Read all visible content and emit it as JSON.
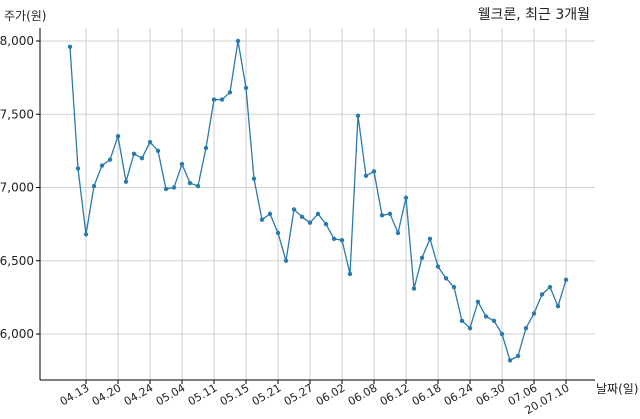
{
  "chart_data": {
    "type": "line",
    "title": "웰크론, 최근 3개월",
    "ylabel": "주가(원)",
    "xlabel": "날짜(일)",
    "ylim": [
      5740,
      8110
    ],
    "yticks": [
      6000,
      6500,
      7000,
      7500,
      8000
    ],
    "ytick_labels": [
      "6,000",
      "6,500",
      "7,000",
      "7,500",
      "8,000"
    ],
    "xticks": [
      {
        "i": 2,
        "label": "04.13"
      },
      {
        "i": 6,
        "label": "04.20"
      },
      {
        "i": 10,
        "label": "04.24"
      },
      {
        "i": 14,
        "label": "05.04"
      },
      {
        "i": 18,
        "label": "05.11"
      },
      {
        "i": 22,
        "label": "05.15"
      },
      {
        "i": 26,
        "label": "05.21"
      },
      {
        "i": 30,
        "label": "05.27"
      },
      {
        "i": 34,
        "label": "06.02"
      },
      {
        "i": 38,
        "label": "06.08"
      },
      {
        "i": 42,
        "label": "06.12"
      },
      {
        "i": 46,
        "label": "06.18"
      },
      {
        "i": 50,
        "label": "06.24"
      },
      {
        "i": 54,
        "label": "06.30"
      },
      {
        "i": 58,
        "label": "07.06"
      },
      {
        "i": 62,
        "label": "20.07.10"
      }
    ],
    "grid": true,
    "color": "#2a7aab",
    "series": [
      {
        "values": [
          7960,
          7130,
          6680,
          7010,
          7150,
          7190,
          7350,
          7040,
          7230,
          7200,
          7310,
          7250,
          6990,
          7000,
          7160,
          7030,
          7010,
          7270,
          7600,
          7600,
          7650,
          8000,
          7680,
          7060,
          6780,
          6820,
          6690,
          6500,
          6850,
          6800,
          6760,
          6820,
          6750,
          6650,
          6640,
          6410,
          7490,
          7080,
          7110,
          6810,
          6820,
          6690,
          6930,
          6310,
          6520,
          6650,
          6460,
          6380,
          6320,
          6090,
          6040,
          6220,
          6120,
          6090,
          6000,
          5820,
          5850,
          6040,
          6140,
          6270,
          6320,
          6190,
          6370
        ]
      }
    ]
  }
}
